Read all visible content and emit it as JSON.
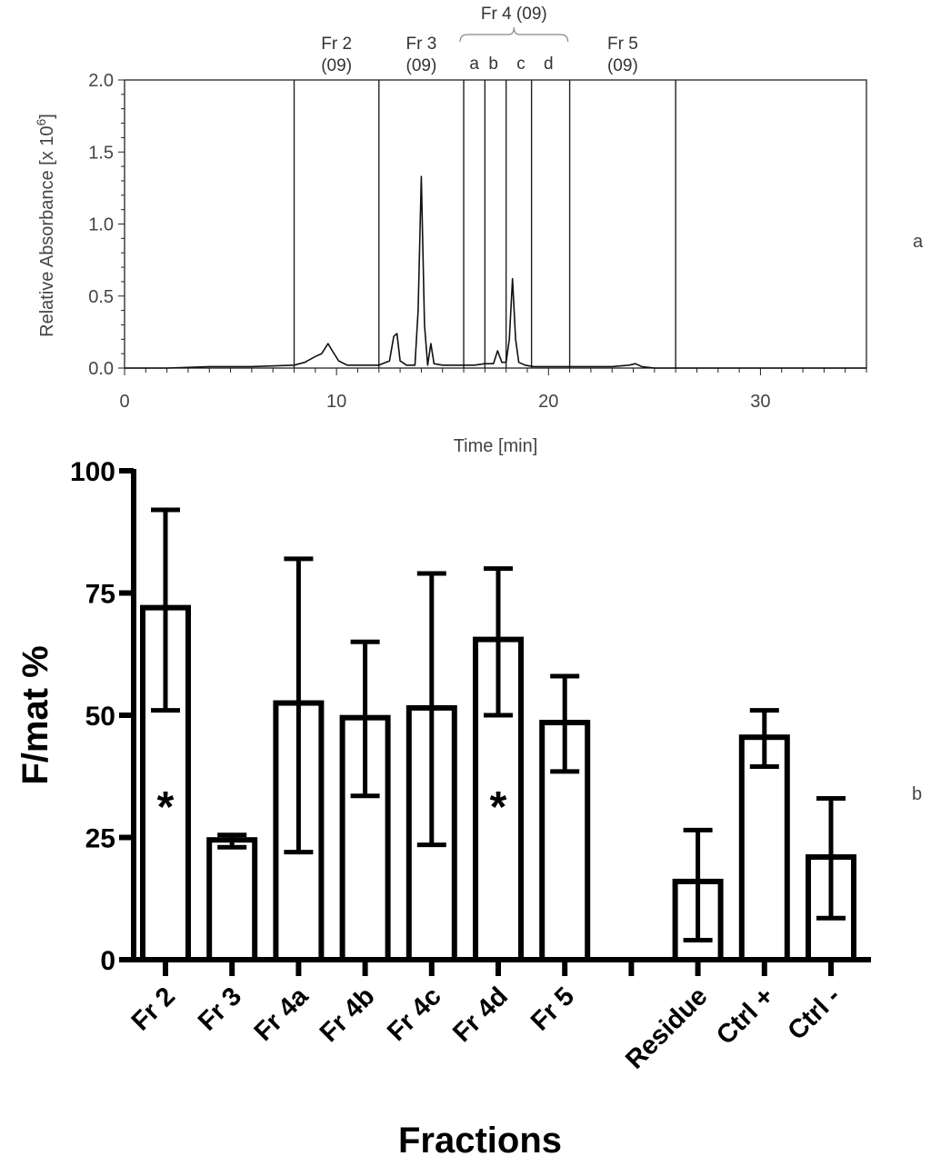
{
  "panel_labels": {
    "a": "a",
    "b": "b"
  },
  "chart_data": [
    {
      "type": "line",
      "panel": "a",
      "xlabel": "Time [min]",
      "ylabel_main": "Relative Absorbance [x 10",
      "ylabel_exp": "6",
      "ylabel_close": "]",
      "xlim": [
        0,
        35
      ],
      "ylim": [
        0,
        2.0
      ],
      "xticks": [
        0,
        10,
        20,
        30
      ],
      "yticks": [
        "0.0",
        "0.5",
        "1.0",
        "1.5",
        "2.0"
      ],
      "fraction_boundaries": [
        8.0,
        12.0,
        16.0,
        17.0,
        18.0,
        19.2,
        21.0,
        26.0
      ],
      "fraction_labels": [
        {
          "line1": "Fr 2",
          "line2": "(09)",
          "x": 10.0
        },
        {
          "line1": "Fr 3",
          "line2": "(09)",
          "x": 14.0
        },
        {
          "line1": "Fr 5",
          "line2": "(09)",
          "x": 23.5
        }
      ],
      "subfraction_labels": [
        {
          "text": "a",
          "x": 16.5
        },
        {
          "text": "b",
          "x": 17.4
        },
        {
          "text": "c",
          "x": 18.7
        },
        {
          "text": "d",
          "x": 20.0
        }
      ],
      "group_label": {
        "text": "Fr 4 (09)",
        "x_start": 16.0,
        "x_end": 21.0
      },
      "x": [
        0,
        2,
        4,
        6,
        8,
        8.5,
        9.0,
        9.3,
        9.6,
        9.8,
        10.1,
        10.5,
        11.0,
        11.5,
        12.0,
        12.5,
        12.7,
        12.85,
        13.0,
        13.3,
        13.7,
        13.85,
        14.0,
        14.15,
        14.3,
        14.45,
        14.6,
        15.0,
        15.5,
        16.0,
        16.5,
        17.0,
        17.4,
        17.6,
        17.8,
        18.0,
        18.15,
        18.3,
        18.45,
        18.6,
        18.9,
        19.3,
        20.0,
        21.0,
        22.0,
        23.0,
        23.8,
        24.1,
        24.4,
        25.0,
        26.0,
        30.0,
        35.0
      ],
      "y": [
        0.0,
        0.0,
        0.01,
        0.01,
        0.02,
        0.04,
        0.08,
        0.1,
        0.17,
        0.12,
        0.05,
        0.02,
        0.02,
        0.02,
        0.02,
        0.05,
        0.22,
        0.24,
        0.05,
        0.02,
        0.02,
        0.4,
        1.33,
        0.3,
        0.02,
        0.17,
        0.03,
        0.02,
        0.02,
        0.02,
        0.02,
        0.03,
        0.03,
        0.12,
        0.04,
        0.04,
        0.2,
        0.62,
        0.2,
        0.04,
        0.02,
        0.01,
        0.01,
        0.01,
        0.01,
        0.01,
        0.02,
        0.03,
        0.01,
        0.0,
        0.0,
        0.0,
        0.0
      ]
    },
    {
      "type": "bar",
      "panel": "b",
      "xlabel": "Fractions",
      "ylabel": "F/mat  %",
      "ylim": [
        0,
        100
      ],
      "yticks": [
        "0",
        "25",
        "50",
        "75",
        "100"
      ],
      "categories": [
        "Fr 2",
        "Fr 3",
        "Fr 4a",
        "Fr 4b",
        "Fr 4c",
        "Fr 4d",
        "Fr 5",
        "",
        "Residue",
        "Ctrl +",
        "Ctrl -"
      ],
      "values": [
        72,
        24.5,
        52.5,
        49.5,
        51.5,
        65.5,
        48.5,
        null,
        16,
        45.5,
        21
      ],
      "err_low": [
        51,
        23,
        22,
        33.5,
        23.5,
        50,
        38.5,
        null,
        4,
        39.5,
        8.5
      ],
      "err_high": [
        92,
        25.5,
        82,
        65,
        79,
        80,
        58,
        null,
        26.5,
        51,
        33
      ],
      "significance": [
        "*",
        "",
        "",
        "",
        "",
        "*",
        "",
        "",
        "",
        "",
        ""
      ]
    }
  ]
}
